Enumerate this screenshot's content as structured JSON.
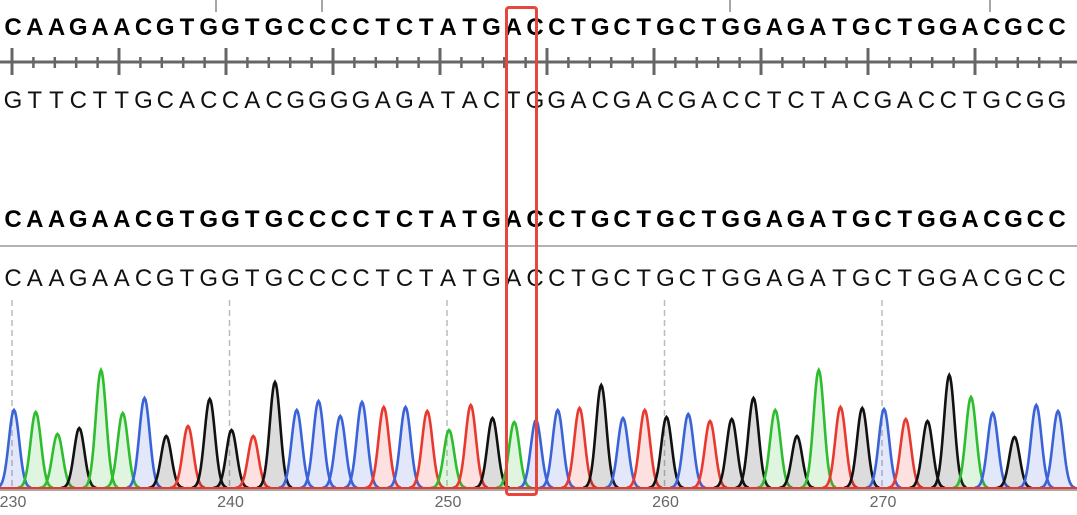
{
  "consensus_top": "CAAGAACGTGGTGCCCCTCTATGACCTGCTGCTGGAGATGCTGGACGCC",
  "complement": "GTTCTTGCACCACGGGGAGATACTGGACGACGACCTCTACGACCTGCGG",
  "consensus_bottom": "CAAGAACGTGGTGCCCCTCTATGACCTGCTGCTGGAGATGCTGGACGCC",
  "read_sequence": "CAAGAACGTGGTGCCCCTCTATGACCTGCTGCTGGAGATGCTGGACGCC",
  "start_position": 230,
  "position_labels": [
    "230",
    "240",
    "250",
    "260",
    "270"
  ],
  "selected_position": 253,
  "selected_base": "A",
  "base_colors": {
    "A": "#2ebd2e",
    "C": "#3b63d8",
    "G": "#111111",
    "T": "#e8392f"
  },
  "highlight_color": "#e8453c",
  "trace": {
    "peak_intensity": [
      78,
      76,
      54,
      60,
      118,
      75,
      90,
      52,
      62,
      89,
      58,
      52,
      106,
      78,
      87,
      72,
      86,
      81,
      81,
      77,
      58,
      83,
      70,
      66,
      68,
      78,
      80,
      103,
      70,
      78,
      71,
      74,
      67,
      69,
      90,
      78,
      52,
      118,
      81,
      80,
      79,
      69,
      67,
      113,
      91,
      75,
      51,
      83,
      77
    ]
  }
}
